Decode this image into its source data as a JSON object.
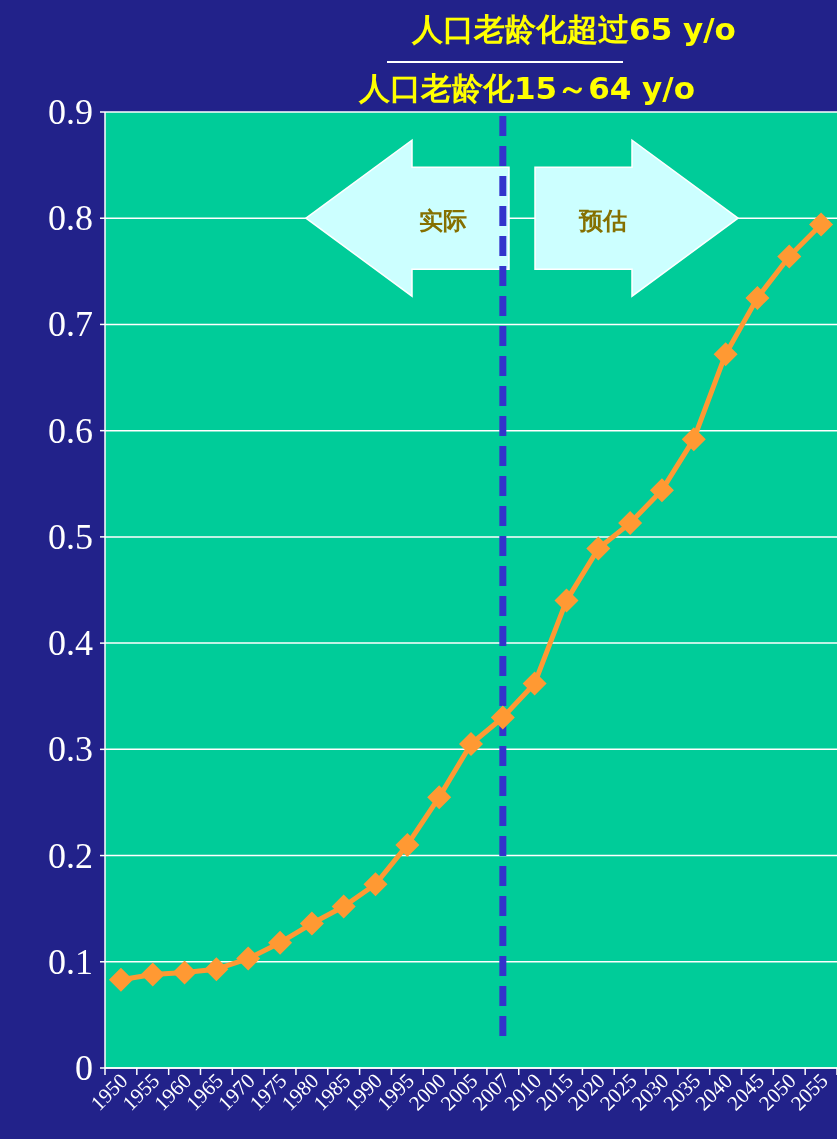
{
  "chart_data": {
    "type": "line",
    "title": "人口老龄化超过65 y/o",
    "subtitle": "人口老龄化15～64 y/o",
    "categories": [
      "1950",
      "1955",
      "1960",
      "1965",
      "1970",
      "1975",
      "1980",
      "1985",
      "1990",
      "1995",
      "2000",
      "2005",
      "2007",
      "2010",
      "2015",
      "2020",
      "2025",
      "2030",
      "2035",
      "2040",
      "2045",
      "2050",
      "2055"
    ],
    "values": [
      0.083,
      0.088,
      0.09,
      0.093,
      0.103,
      0.118,
      0.136,
      0.152,
      0.173,
      0.21,
      0.255,
      0.305,
      0.33,
      0.362,
      0.44,
      0.489,
      0.513,
      0.544,
      0.592,
      0.672,
      0.725,
      0.764,
      0.794
    ],
    "color": "#ff9933",
    "marker": "diamond",
    "line_style": "solid",
    "grid": "y",
    "ylim": [
      0,
      0.9
    ],
    "yticks": [
      0,
      0.1,
      0.2,
      0.3,
      0.4,
      0.5,
      0.6,
      0.7,
      0.8,
      0.9
    ],
    "ref_lines": [
      {
        "axis": "x",
        "value": "2007",
        "color": "#3333cc",
        "line_style": "dashed"
      }
    ],
    "annotations": [
      "实际",
      "预估"
    ]
  }
}
